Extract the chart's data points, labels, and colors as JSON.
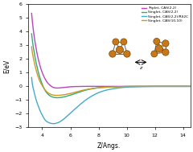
{
  "title": "",
  "xlabel": "Z/Angs.",
  "ylabel": "E/eV",
  "xlim": [
    3.0,
    14.5
  ],
  "ylim": [
    -3.0,
    6.0
  ],
  "xticks": [
    4,
    6,
    8,
    10,
    12,
    14
  ],
  "yticks": [
    -3,
    -2,
    -1,
    0,
    1,
    2,
    3,
    4,
    5,
    6
  ],
  "background_color": "#ffffff",
  "legend": [
    {
      "label": "Triplet, CAS(2,2)",
      "color": "#bb44bb"
    },
    {
      "label": "Singlet, CAS(2,2)",
      "color": "#33aa77"
    },
    {
      "label": "Singlet, CAS(2,2)/RS2C",
      "color": "#44aacc"
    },
    {
      "label": "Singlet, CAS(10,10)",
      "color": "#cc9922"
    }
  ],
  "curves": {
    "triplet_cas22": {
      "x": [
        3.25,
        3.3,
        3.4,
        3.5,
        3.6,
        3.7,
        3.8,
        3.9,
        4.0,
        4.2,
        4.4,
        4.6,
        4.8,
        5.0,
        5.5,
        6.0,
        6.5,
        7.0,
        7.5,
        8.0,
        9.0,
        10.0,
        11.0,
        12.0,
        13.0,
        14.0,
        14.5
      ],
      "y": [
        5.35,
        4.8,
        3.9,
        3.2,
        2.6,
        2.1,
        1.68,
        1.32,
        1.02,
        0.56,
        0.24,
        0.04,
        -0.08,
        -0.12,
        -0.08,
        -0.03,
        -0.01,
        0.0,
        0.0,
        0.0,
        0.0,
        0.0,
        0.0,
        0.0,
        0.0,
        0.0,
        0.0
      ],
      "color": "#bb44bb",
      "lw": 1.0
    },
    "singlet_cas22": {
      "x": [
        3.25,
        3.3,
        3.4,
        3.5,
        3.6,
        3.7,
        3.8,
        3.9,
        4.0,
        4.2,
        4.4,
        4.6,
        4.8,
        5.0,
        5.5,
        6.0,
        6.5,
        7.0,
        7.5,
        8.0,
        9.0,
        10.0,
        11.0,
        12.0,
        13.0,
        14.0,
        14.5
      ],
      "y": [
        3.85,
        3.4,
        2.7,
        2.1,
        1.6,
        1.15,
        0.76,
        0.44,
        0.16,
        -0.28,
        -0.56,
        -0.72,
        -0.8,
        -0.83,
        -0.78,
        -0.64,
        -0.46,
        -0.3,
        -0.18,
        -0.1,
        -0.04,
        -0.01,
        0.0,
        0.0,
        0.0,
        0.0,
        0.0
      ],
      "color": "#33aa77",
      "lw": 1.0
    },
    "singlet_cas22_rs2c": {
      "x": [
        3.25,
        3.3,
        3.4,
        3.5,
        3.6,
        3.7,
        3.8,
        3.9,
        4.0,
        4.2,
        4.4,
        4.6,
        4.8,
        5.0,
        5.2,
        5.5,
        6.0,
        6.5,
        7.0,
        7.5,
        8.0,
        9.0,
        10.0,
        11.0,
        12.0,
        13.0,
        14.0,
        14.5
      ],
      "y": [
        0.65,
        0.2,
        -0.3,
        -0.72,
        -1.08,
        -1.38,
        -1.65,
        -1.9,
        -2.1,
        -2.45,
        -2.62,
        -2.7,
        -2.73,
        -2.7,
        -2.62,
        -2.42,
        -1.96,
        -1.5,
        -1.07,
        -0.72,
        -0.46,
        -0.18,
        -0.06,
        -0.02,
        0.0,
        0.0,
        0.0,
        0.0
      ],
      "color": "#44aacc",
      "lw": 1.0
    },
    "singlet_cas1010": {
      "x": [
        3.25,
        3.3,
        3.4,
        3.5,
        3.6,
        3.7,
        3.8,
        3.9,
        4.0,
        4.2,
        4.4,
        4.6,
        4.8,
        5.0,
        5.5,
        6.0,
        6.5,
        7.0,
        7.5,
        8.0,
        9.0,
        10.0,
        11.0,
        12.0,
        13.0,
        14.0,
        14.5
      ],
      "y": [
        2.9,
        2.5,
        1.95,
        1.48,
        1.08,
        0.74,
        0.46,
        0.24,
        0.06,
        -0.25,
        -0.46,
        -0.58,
        -0.64,
        -0.66,
        -0.62,
        -0.52,
        -0.38,
        -0.26,
        -0.17,
        -0.1,
        -0.04,
        -0.01,
        0.0,
        0.0,
        0.0,
        0.0,
        0.0
      ],
      "color": "#cc9922",
      "lw": 1.0
    }
  },
  "cu_color": "#c87818",
  "cu_edge": "#7a4800",
  "bond_color": "#666666"
}
